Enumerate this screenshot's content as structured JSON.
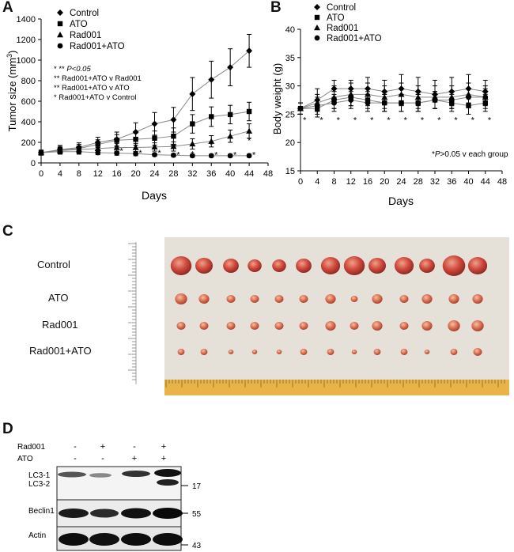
{
  "panels": {
    "A": "A",
    "B": "B",
    "C": "C",
    "D": "D"
  },
  "chart_data": [
    {
      "type": "line",
      "panel": "A",
      "xlabel": "Days",
      "ylabel_prefix": "Tumor  size  (mm",
      "ylabel_sup": "3",
      "ylabel_suffix": ")",
      "xlim": [
        0,
        48
      ],
      "ylim": [
        0,
        1400
      ],
      "xticks": [
        0,
        4,
        8,
        12,
        16,
        20,
        24,
        28,
        32,
        36,
        40,
        44,
        48
      ],
      "yticks": [
        0,
        200,
        400,
        600,
        800,
        1000,
        1200,
        1400
      ],
      "x": [
        0,
        4,
        8,
        12,
        16,
        20,
        24,
        28,
        32,
        36,
        40,
        44
      ],
      "series": [
        {
          "name": "Control",
          "marker": "diamond",
          "values": [
            100,
            130,
            150,
            200,
            230,
            300,
            380,
            420,
            670,
            810,
            930,
            1090
          ],
          "errors": [
            25,
            40,
            45,
            50,
            70,
            90,
            110,
            120,
            160,
            180,
            180,
            160
          ]
        },
        {
          "name": "ATO",
          "marker": "square",
          "values": [
            100,
            125,
            140,
            180,
            220,
            230,
            240,
            260,
            380,
            450,
            470,
            500
          ],
          "errors": [
            20,
            35,
            40,
            45,
            55,
            60,
            70,
            80,
            90,
            95,
            90,
            90
          ]
        },
        {
          "name": "Rad001",
          "marker": "triangle",
          "values": [
            100,
            120,
            130,
            140,
            150,
            150,
            155,
            160,
            185,
            210,
            260,
            310
          ],
          "errors": [
            20,
            30,
            35,
            35,
            40,
            40,
            40,
            45,
            50,
            55,
            60,
            70
          ]
        },
        {
          "name": "Rad001+ATO",
          "marker": "circle",
          "values": [
            100,
            110,
            110,
            100,
            95,
            90,
            80,
            75,
            70,
            70,
            70,
            70
          ],
          "errors": [
            15,
            25,
            25,
            20,
            20,
            20,
            15,
            15,
            15,
            15,
            15,
            15
          ]
        }
      ],
      "star_annotations": [
        {
          "x": 16,
          "y": 170,
          "text": "*"
        },
        {
          "x": 17,
          "y": 120,
          "text": "*"
        },
        {
          "x": 20,
          "y": 160,
          "text": "*"
        },
        {
          "x": 21,
          "y": 100,
          "text": "*"
        },
        {
          "x": 24,
          "y": 160,
          "text": "*"
        },
        {
          "x": 25,
          "y": 100,
          "text": "*"
        },
        {
          "x": 28,
          "y": 160,
          "text": "**"
        },
        {
          "x": 29,
          "y": 80,
          "text": "*"
        },
        {
          "x": 32,
          "y": 90,
          "text": "*"
        },
        {
          "x": 36,
          "y": 180,
          "text": "*"
        },
        {
          "x": 37,
          "y": 80,
          "text": "*"
        },
        {
          "x": 41,
          "y": 80,
          "text": "*"
        },
        {
          "x": 44,
          "y": 220,
          "text": "*"
        },
        {
          "x": 45,
          "y": 80,
          "text": "*"
        }
      ],
      "annotations": [
        {
          "symbol": "* ** ",
          "text": "P<0.05",
          "italic": true
        },
        {
          "symbol": "** ",
          "text": "Rad001+ATO v Rad001",
          "italic": false
        },
        {
          "symbol": "** ",
          "text": "Rad001+ATO v ATO",
          "italic": false
        },
        {
          "symbol": "* ",
          "text": "Rad001+ATO v Control",
          "italic": false
        }
      ]
    },
    {
      "type": "line",
      "panel": "B",
      "xlabel": "Days",
      "ylabel": "Body  weight  (g)",
      "xlim": [
        0,
        48
      ],
      "ylim": [
        15,
        40
      ],
      "xticks": [
        0,
        4,
        8,
        12,
        16,
        20,
        24,
        28,
        32,
        36,
        40,
        44,
        48
      ],
      "yticks": [
        15,
        20,
        25,
        30,
        35,
        40
      ],
      "x": [
        0,
        4,
        8,
        12,
        16,
        20,
        24,
        28,
        32,
        36,
        40,
        44
      ],
      "series": [
        {
          "name": "Control",
          "marker": "diamond",
          "values": [
            26,
            27.5,
            29.5,
            29.5,
            29.5,
            29,
            29.5,
            29,
            28.5,
            29,
            29.5,
            29
          ],
          "errors": [
            1.0,
            2.0,
            1.5,
            1.5,
            2.0,
            2.0,
            2.5,
            2.5,
            2.5,
            2.5,
            2.5,
            2.0
          ]
        },
        {
          "name": "ATO",
          "marker": "square",
          "values": [
            26,
            26,
            27.5,
            28,
            27.5,
            27,
            27,
            27,
            27.5,
            27,
            26.5,
            27
          ],
          "errors": [
            1.0,
            1.5,
            1.5,
            1.5,
            1.5,
            1.5,
            1.5,
            1.5,
            1.5,
            1.5,
            1.5,
            1.5
          ]
        },
        {
          "name": "Rad001",
          "marker": "triangle",
          "values": [
            26,
            27,
            28,
            28.5,
            28.5,
            28,
            28.5,
            28,
            28,
            28,
            28.5,
            28
          ],
          "errors": [
            1.0,
            1.5,
            2.0,
            2.0,
            2.0,
            2.0,
            2.0,
            2.0,
            2.0,
            2.0,
            2.0,
            2.0
          ]
        },
        {
          "name": "Rad001+ATO",
          "marker": "circle",
          "values": [
            26,
            26.5,
            27,
            27.5,
            27,
            27,
            27,
            27,
            27.5,
            27.5,
            28,
            28
          ],
          "errors": [
            1.0,
            1.5,
            1.5,
            1.5,
            1.5,
            1.5,
            1.5,
            1.5,
            1.5,
            1.5,
            1.5,
            1.5
          ]
        }
      ],
      "star_annotations": [
        {
          "x": 1,
          "y": 24,
          "text": "*"
        },
        {
          "x": 5,
          "y": 24,
          "text": "*"
        },
        {
          "x": 9,
          "y": 24,
          "text": "*"
        },
        {
          "x": 13,
          "y": 24,
          "text": "*"
        },
        {
          "x": 17,
          "y": 24,
          "text": "*"
        },
        {
          "x": 21,
          "y": 24,
          "text": "*"
        },
        {
          "x": 25,
          "y": 24,
          "text": "*"
        },
        {
          "x": 29,
          "y": 24,
          "text": "*"
        },
        {
          "x": 33,
          "y": 24,
          "text": "*"
        },
        {
          "x": 37,
          "y": 24,
          "text": "*"
        },
        {
          "x": 41,
          "y": 24,
          "text": "*"
        },
        {
          "x": 45,
          "y": 24,
          "text": "*"
        }
      ],
      "note": {
        "star": "*",
        "italic_p": "P",
        "rest": ">0.05 v each group"
      }
    }
  ],
  "panelC": {
    "labels": [
      "Control",
      "ATO",
      "Rad001",
      "Rad001+ATO"
    ]
  },
  "panelD": {
    "treatments": [
      {
        "name": "Rad001",
        "signs": [
          "-",
          "+",
          "-",
          "+"
        ]
      },
      {
        "name": "ATO",
        "signs": [
          "-",
          "-",
          "+",
          "+"
        ]
      }
    ],
    "blots": [
      {
        "labels": [
          "LC3-1",
          "LC3-2"
        ],
        "marker": "17"
      },
      {
        "labels": [
          "Beclin1"
        ],
        "marker": "55"
      },
      {
        "labels": [
          "Actin"
        ],
        "marker": "43"
      }
    ]
  },
  "colors": {
    "line": "#888888",
    "marker": "#000000",
    "tumor": "#c8433c",
    "tray": "#ece8e1"
  }
}
